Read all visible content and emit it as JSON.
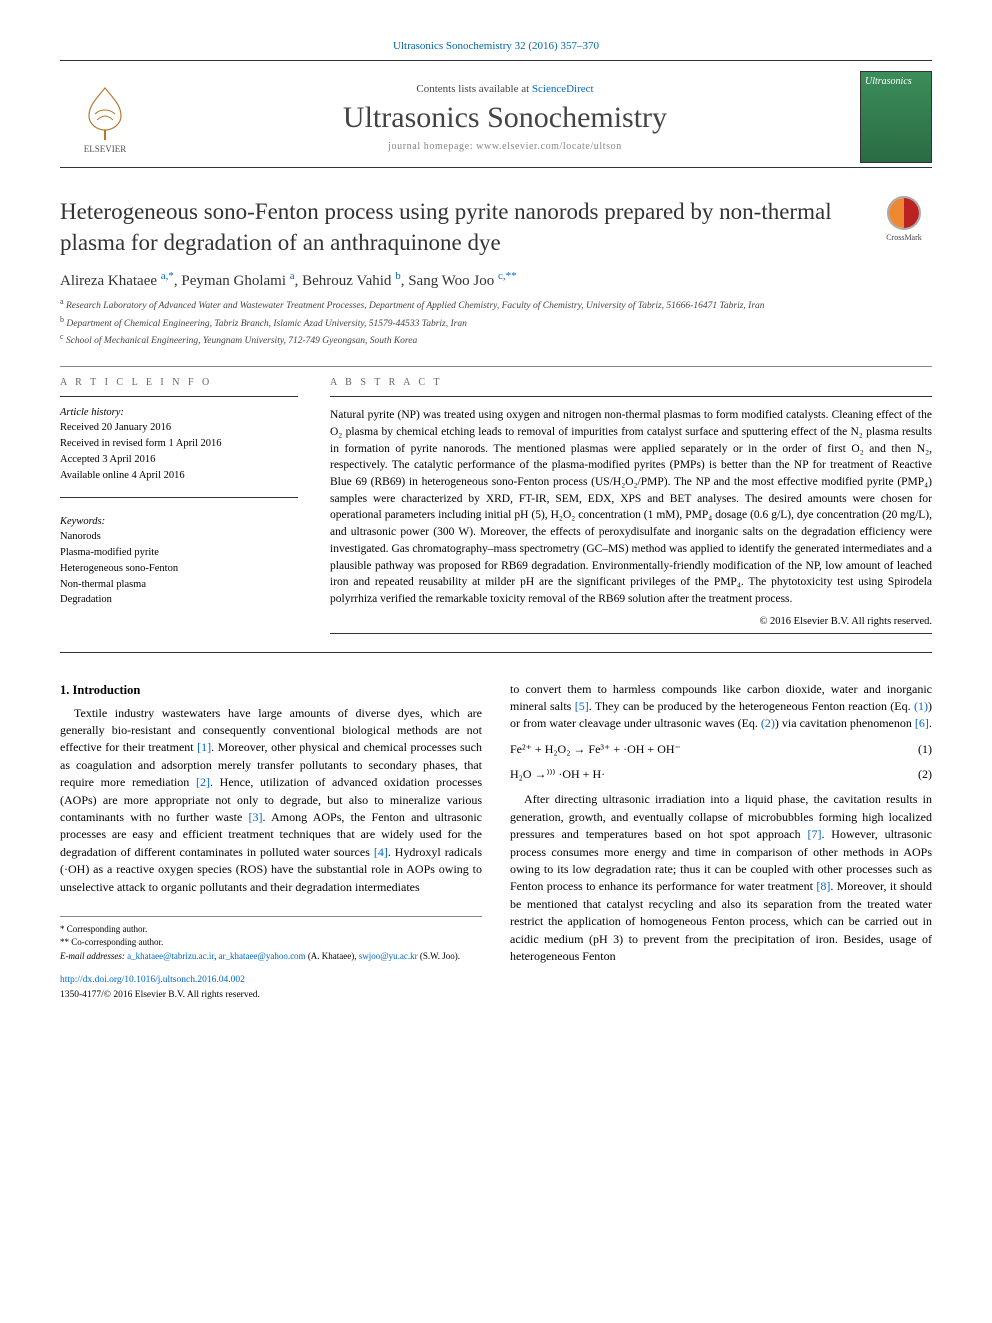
{
  "running_head": "Ultrasonics Sonochemistry 32 (2016) 357–370",
  "masthead": {
    "publisher_name": "ELSEVIER",
    "contents_prefix": "Contents lists available at ",
    "contents_link": "ScienceDirect",
    "journal_name": "Ultrasonics Sonochemistry",
    "homepage_prefix": "journal homepage: ",
    "homepage_url": "www.elsevier.com/locate/ultson",
    "cover_title": "Ultrasonics"
  },
  "crossmark_label": "CrossMark",
  "title": "Heterogeneous sono-Fenton process using pyrite nanorods prepared by non-thermal plasma for degradation of an anthraquinone dye",
  "authors_html": "Alireza Khataee <span class='sup'>a,*</span>, Peyman Gholami <span class='sup'>a</span>, Behrouz Vahid <span class='sup'>b</span>, Sang Woo Joo <span class='sup'>c,**</span>",
  "affiliations": [
    {
      "lbl": "a",
      "text": "Research Laboratory of Advanced Water and Wastewater Treatment Processes, Department of Applied Chemistry, Faculty of Chemistry, University of Tabriz, 51666-16471 Tabriz, Iran"
    },
    {
      "lbl": "b",
      "text": "Department of Chemical Engineering, Tabriz Branch, Islamic Azad University, 51579-44533 Tabriz, Iran"
    },
    {
      "lbl": "c",
      "text": "School of Mechanical Engineering, Yeungnam University, 712-749 Gyeongsan, South Korea"
    }
  ],
  "info_heading": "A R T I C L E   I N F O",
  "abstract_heading": "A B S T R A C T",
  "history_heading": "Article history:",
  "history": [
    "Received 20 January 2016",
    "Received in revised form 1 April 2016",
    "Accepted 3 April 2016",
    "Available online 4 April 2016"
  ],
  "keywords_heading": "Keywords:",
  "keywords": [
    "Nanorods",
    "Plasma-modified pyrite",
    "Heterogeneous sono-Fenton",
    "Non-thermal plasma",
    "Degradation"
  ],
  "abstract": "Natural pyrite (NP) was treated using oxygen and nitrogen non-thermal plasmas to form modified catalysts. Cleaning effect of the O₂ plasma by chemical etching leads to removal of impurities from catalyst surface and sputtering effect of the N₂ plasma results in formation of pyrite nanorods. The mentioned plasmas were applied separately or in the order of first O₂ and then N₂, respectively. The catalytic performance of the plasma-modified pyrites (PMPs) is better than the NP for treatment of Reactive Blue 69 (RB69) in heterogeneous sono-Fenton process (US/H₂O₂/PMP). The NP and the most effective modified pyrite (PMP₄) samples were characterized by XRD, FT-IR, SEM, EDX, XPS and BET analyses. The desired amounts were chosen for operational parameters including initial pH (5), H₂O₂ concentration (1 mM), PMP₄ dosage (0.6 g/L), dye concentration (20 mg/L), and ultrasonic power (300 W). Moreover, the effects of peroxydisulfate and inorganic salts on the degradation efficiency were investigated. Gas chromatography–mass spectrometry (GC–MS) method was applied to identify the generated intermediates and a plausible pathway was proposed for RB69 degradation. Environmentally-friendly modification of the NP, low amount of leached iron and repeated reusability at milder pH are the significant privileges of the PMP₄. The phytotoxicity test using Spirodela polyrrhiza verified the remarkable toxicity removal of the RB69 solution after the treatment process.",
  "copyright": "© 2016 Elsevier B.V. All rights reserved.",
  "section1_heading": "1. Introduction",
  "para1": "Textile industry wastewaters have large amounts of diverse dyes, which are generally bio-resistant and consequently conventional biological methods are not effective for their treatment [1]. Moreover, other physical and chemical processes such as coagulation and adsorption merely transfer pollutants to secondary phases, that require more remediation [2]. Hence, utilization of advanced oxidation processes (AOPs) are more appropriate not only to degrade, but also to mineralize various contaminants with no further waste [3]. Among AOPs, the Fenton and ultrasonic processes are easy and efficient treatment techniques that are widely used for the degradation of different contaminates in polluted water sources [4]. Hydroxyl radicals (·OH) as a reactive oxygen species (ROS) have the substantial role in AOPs owing to unselective attack to organic pollutants and their degradation intermediates",
  "para2": "to convert them to harmless compounds like carbon dioxide, water and inorganic mineral salts [5]. They can be produced by the heterogeneous Fenton reaction (Eq. (1)) or from water cleavage under ultrasonic waves (Eq. (2)) via cavitation phenomenon [6].",
  "equations": [
    {
      "expr": "Fe²⁺ + H₂O₂ → Fe³⁺ + ·OH + OH⁻",
      "tag": "(1)"
    },
    {
      "expr": "H₂O  →⁾⁾⁾  ·OH + H·",
      "tag": "(2)"
    }
  ],
  "para3": "After directing ultrasonic irradiation into a liquid phase, the cavitation results in generation, growth, and eventually collapse of microbubbles forming high localized pressures and temperatures based on hot spot approach [7]. However, ultrasonic process consumes more energy and time in comparison of other methods in AOPs owing to its low degradation rate; thus it can be coupled with other processes such as Fenton process to enhance its performance for water treatment [8]. Moreover, it should be mentioned that catalyst recycling and also its separation from the treated water restrict the application of homogeneous Fenton process, which can be carried out in acidic medium (pH 3) to prevent from the precipitation of iron. Besides, usage of heterogeneous Fenton",
  "footnotes": {
    "c1": "* Corresponding author.",
    "c2": "** Co-corresponding author.",
    "email_label": "E-mail addresses:",
    "emails": "a_khataee@tabrizu.ac.ir, ar_khataee@yahoo.com (A. Khataee), swjoo@yu.ac.kr (S.W. Joo)."
  },
  "doi": {
    "url": "http://dx.doi.org/10.1016/j.ultsonch.2016.04.002",
    "issn_line": "1350-4177/© 2016 Elsevier B.V. All rights reserved."
  },
  "colors": {
    "link": "#0066cc",
    "text": "#000000",
    "muted": "#666666"
  }
}
